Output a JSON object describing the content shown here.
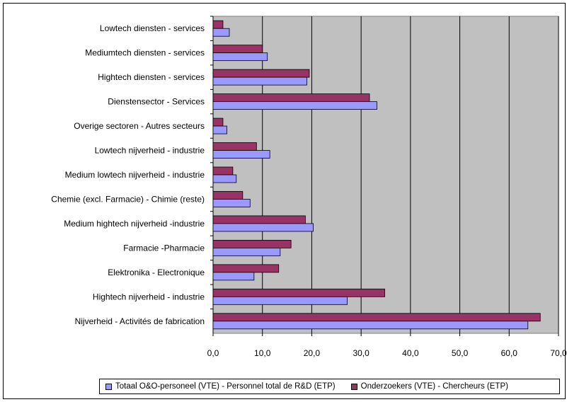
{
  "chart_data": {
    "type": "bar",
    "orientation": "horizontal",
    "categories": [
      "Lowtech diensten - services",
      "Mediumtech diensten - services",
      "Hightech diensten - services",
      "Dienstensector - Services",
      "Overige sectoren - Autres secteurs",
      "Lowtech nijverheid - industrie",
      "Medium lowtech nijverheid - industrie",
      "Chemie (excl. Farmacie) - Chimie (reste)",
      "Medium hightech nijverheid -industrie",
      "Farmacie -Pharmacie",
      "Elektronika - Electronique",
      "Hightech nijverheid - industrie",
      "Nijverheid - Activités de fabrication"
    ],
    "series": [
      {
        "name": "Onderzoekers (VTE) - Chercheurs (ETP)",
        "color": "#993366",
        "values": [
          2.0,
          10.0,
          19.5,
          31.7,
          2.0,
          8.8,
          4.0,
          6.0,
          18.7,
          15.8,
          13.3,
          34.8,
          66.3
        ]
      },
      {
        "name": "Totaal O&O-personeel (VTE) - Personnel total de R&D (ETP)",
        "color": "#9999ff",
        "values": [
          3.3,
          11.0,
          19.0,
          33.2,
          2.8,
          11.5,
          4.7,
          7.5,
          20.3,
          13.6,
          8.3,
          27.2,
          63.8
        ]
      }
    ],
    "xlim": [
      0,
      70
    ],
    "xticks": [
      "0,0",
      "10,0",
      "20,0",
      "30,0",
      "40,0",
      "50,0",
      "60,0",
      "70,0"
    ],
    "xgrid": true,
    "plot_background": "#c0c0c0",
    "legend_position": "bottom",
    "legend_order": [
      1,
      0
    ]
  }
}
